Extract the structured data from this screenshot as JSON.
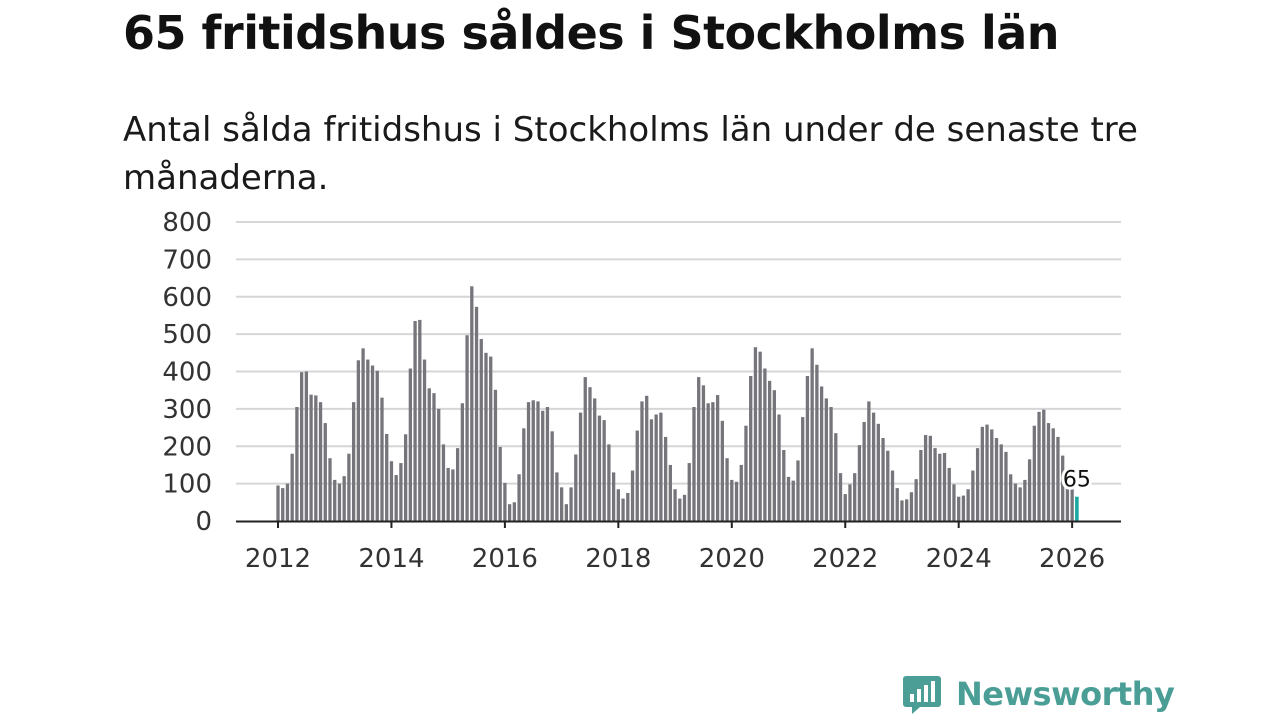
{
  "header": {
    "title": "65 fritidshus såldes i Stockholms län",
    "subtitle": "Antal sålda fritidshus i Stockholms län under de senaste tre månaderna."
  },
  "brand": {
    "name": "Newsworthy",
    "color": "#4a9e96"
  },
  "chart_data": {
    "type": "bar",
    "title": "65 fritidshus såldes i Stockholms län",
    "subtitle": "Antal sålda fritidshus i Stockholms län under de senaste tre månaderna.",
    "xlabel": "",
    "ylabel": "",
    "ylim": [
      0,
      800
    ],
    "yticks": [
      0,
      100,
      200,
      300,
      400,
      500,
      600,
      700,
      800
    ],
    "xticks": [
      "2012",
      "2014",
      "2016",
      "2018",
      "2020",
      "2022",
      "2024",
      "2026"
    ],
    "x_start": "2012-01",
    "grid": true,
    "bar_color": "#76757b",
    "highlight_color": "#1aa9a0",
    "highlight_last": true,
    "last_value_label": "65",
    "values": [
      95,
      88,
      100,
      180,
      305,
      398,
      400,
      338,
      336,
      318,
      262,
      168,
      110,
      100,
      120,
      180,
      318,
      430,
      462,
      432,
      416,
      402,
      330,
      233,
      160,
      123,
      155,
      232,
      408,
      535,
      538,
      432,
      355,
      342,
      300,
      205,
      142,
      138,
      195,
      315,
      497,
      628,
      573,
      487,
      450,
      440,
      351,
      198,
      102,
      45,
      50,
      125,
      248,
      318,
      323,
      320,
      295,
      305,
      240,
      130,
      90,
      45,
      90,
      178,
      290,
      385,
      358,
      328,
      282,
      270,
      205,
      130,
      85,
      60,
      75,
      135,
      242,
      320,
      335,
      272,
      285,
      290,
      225,
      150,
      85,
      60,
      70,
      155,
      305,
      385,
      363,
      315,
      318,
      337,
      268,
      168,
      110,
      105,
      150,
      255,
      388,
      465,
      453,
      408,
      375,
      350,
      285,
      190,
      118,
      108,
      162,
      278,
      388,
      462,
      418,
      360,
      328,
      305,
      235,
      128,
      72,
      98,
      128,
      203,
      265,
      320,
      290,
      260,
      222,
      188,
      135,
      88,
      55,
      58,
      77,
      112,
      190,
      230,
      228,
      195,
      180,
      182,
      142,
      98,
      65,
      68,
      85,
      135,
      195,
      252,
      258,
      245,
      222,
      205,
      185,
      125,
      100,
      90,
      110,
      165,
      255,
      292,
      298,
      262,
      248,
      225,
      175,
      100,
      85,
      65
    ]
  }
}
